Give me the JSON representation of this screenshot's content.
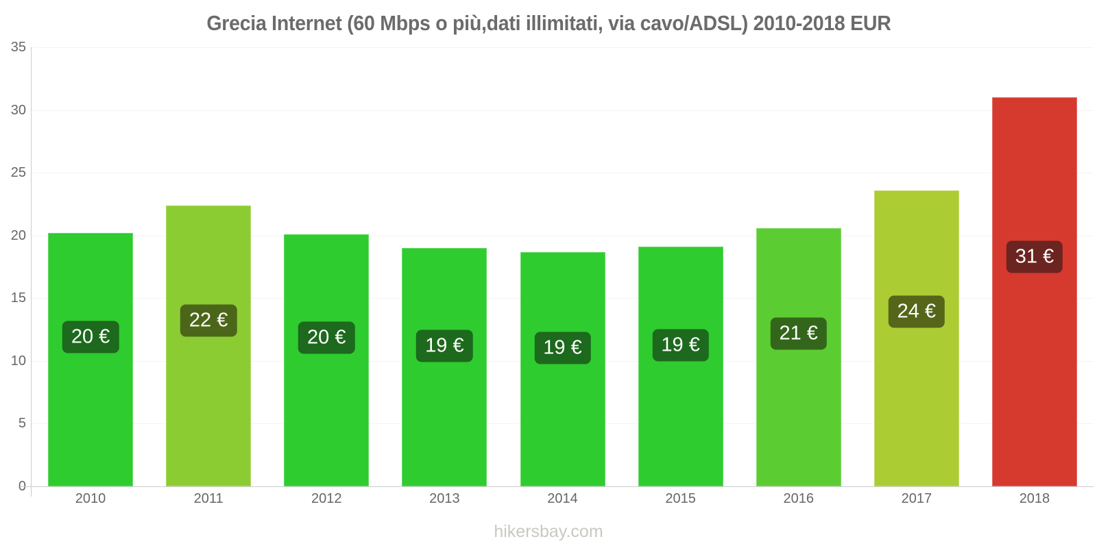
{
  "header": {
    "title": "Grecia Internet (60 Mbps o più,dati illimitati, via cavo/ADSL) 2010-2018 EUR"
  },
  "footer": {
    "watermark": "hikersbay.com"
  },
  "chart_data": {
    "type": "bar",
    "title": "Grecia Internet (60 Mbps o più,dati illimitati, via cavo/ADSL) 2010-2018 EUR",
    "xlabel": "",
    "ylabel": "",
    "unit": "EUR",
    "categories": [
      "2010",
      "2011",
      "2012",
      "2013",
      "2014",
      "2015",
      "2016",
      "2017",
      "2018"
    ],
    "values": [
      20.2,
      22.4,
      20.1,
      19.0,
      18.7,
      19.1,
      20.6,
      23.6,
      31.0
    ],
    "value_labels": [
      "20 €",
      "22 €",
      "20 €",
      "19 €",
      "19 €",
      "19 €",
      "21 €",
      "24 €",
      "31 €"
    ],
    "bar_colors": [
      "#2fcc2f",
      "#8ccc33",
      "#2fcc2f",
      "#2fcc2f",
      "#2fcc2f",
      "#2fcc2f",
      "#5ccc33",
      "#accc33",
      "#d6392e"
    ],
    "label_colors": [
      "#1d691d",
      "#4c6619",
      "#1d691d",
      "#1d691d",
      "#1d691d",
      "#1d691d",
      "#33661a",
      "#55661a",
      "#6b2420"
    ],
    "ylim": [
      0,
      35
    ],
    "yticks": [
      0,
      5,
      10,
      15,
      20,
      25,
      30,
      35
    ],
    "grid": "horizontal",
    "legend": "none",
    "axis_color": "#cccccc",
    "grid_color": "#f4f4f4",
    "tick_label_color": "#666666",
    "title_color": "#6b6b6b",
    "watermark": "hikersbay.com"
  }
}
